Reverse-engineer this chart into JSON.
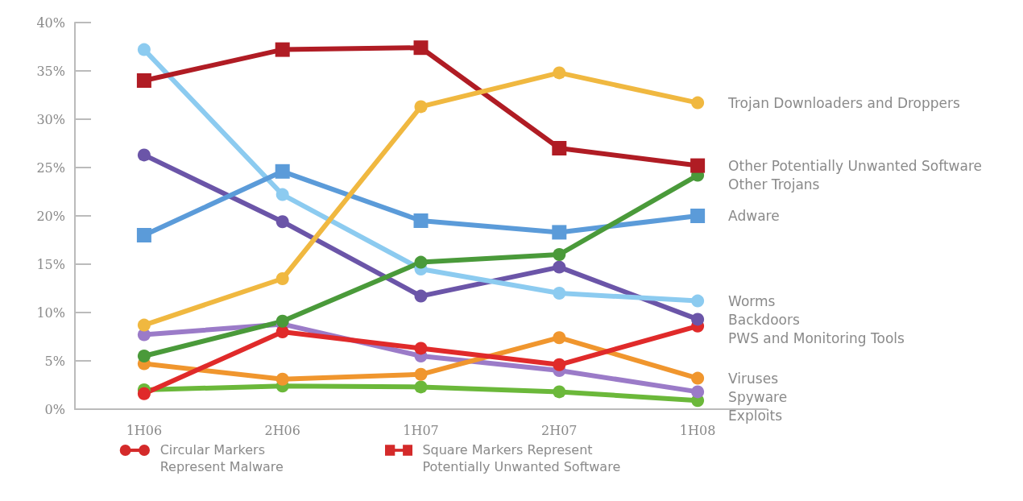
{
  "chart_data": {
    "type": "line",
    "categories": [
      "1H06",
      "2H06",
      "1H07",
      "2H07",
      "1H08"
    ],
    "series": [
      {
        "name": "Trojan Downloaders and Droppers",
        "color": "#f0b840",
        "marker": "circle",
        "values": [
          8.7,
          13.5,
          31.3,
          34.8,
          31.7
        ]
      },
      {
        "name": "Other Potentially Unwanted Software",
        "color": "#b01c24",
        "marker": "square",
        "values": [
          34,
          37.2,
          37.4,
          27,
          25.2
        ]
      },
      {
        "name": "Other Trojans",
        "color": "#4a9a3a",
        "marker": "circle",
        "values": [
          5.5,
          9.1,
          15.2,
          16,
          24.2
        ]
      },
      {
        "name": "Adware",
        "color": "#5b9bd9",
        "marker": "square",
        "values": [
          18,
          24.6,
          19.5,
          18.3,
          20
        ]
      },
      {
        "name": "Worms",
        "color": "#8ccbf0",
        "marker": "circle",
        "values": [
          37.2,
          22.2,
          14.5,
          12,
          11.2
        ]
      },
      {
        "name": "Backdoors",
        "color": "#6b55a8",
        "marker": "circle",
        "values": [
          26.3,
          19.4,
          11.7,
          14.7,
          9.3
        ]
      },
      {
        "name": "PWS and Monitoring Tools",
        "color": "#e02a2a",
        "marker": "circle",
        "values": [
          1.6,
          8,
          6.3,
          4.6,
          8.6
        ]
      },
      {
        "name": "Viruses",
        "color": "#f0962e",
        "marker": "circle",
        "values": [
          4.7,
          3.1,
          3.6,
          7.4,
          3.2
        ]
      },
      {
        "name": "Spyware",
        "color": "#9b7bc8",
        "marker": "circle",
        "values": [
          7.7,
          8.8,
          5.5,
          4,
          1.8
        ]
      },
      {
        "name": "Exploits",
        "color": "#6bb83a",
        "marker": "circle",
        "values": [
          2,
          2.4,
          2.3,
          1.8,
          0.9
        ]
      }
    ],
    "ylim": [
      0,
      40
    ],
    "yticks": [
      {
        "value": 0,
        "label": "0%"
      },
      {
        "value": 5,
        "label": "5%"
      },
      {
        "value": 10,
        "label": "10%"
      },
      {
        "value": 15,
        "label": "15%"
      },
      {
        "value": 20,
        "label": "20%"
      },
      {
        "value": 25,
        "label": "25%"
      },
      {
        "value": 30,
        "label": "30%"
      },
      {
        "value": 35,
        "label": "35%"
      },
      {
        "value": 40,
        "label": "40%"
      }
    ],
    "grid": false,
    "legend": false,
    "annotations": [
      "Circular Markers Represent Malware",
      "Square Markers Represent Potentially Unwanted Software"
    ]
  }
}
